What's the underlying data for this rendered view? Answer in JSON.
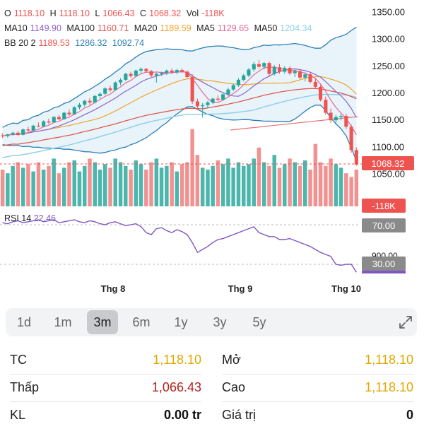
{
  "ohlc_legend": {
    "o_label": "O",
    "o_value": "1118.10",
    "h_label": "H",
    "h_value": "1118.10",
    "l_label": "L",
    "l_value": "1066.43",
    "c_label": "C",
    "c_value": "1068.32",
    "vol_label": "Vol",
    "vol_value": "-118K"
  },
  "ma_legend": {
    "ma10_label": "MA10",
    "ma10_value": "1149.90",
    "ma100_label": "MA100",
    "ma100_value": "1160.71",
    "ma20_label": "MA20",
    "ma20_value": "1189.59",
    "ma5_label": "MA5",
    "ma5_value": "1129.65",
    "ma50_label": "MA50",
    "ma50_value": "1204.34"
  },
  "bb_legend": {
    "label": "BB 20 2",
    "upper": "1189.53",
    "middle": "1286.32",
    "lower": "1092.74"
  },
  "rsi_legend": {
    "label": "RSI 14",
    "value": "22.46"
  },
  "price_axis": [
    "1350.00",
    "1300.00",
    "1250.00",
    "1200.00",
    "1150.00",
    "1100.00",
    "1050.00"
  ],
  "current_price_tag": "1068.32",
  "volume_tag": "-118K",
  "rsi_axis": {
    "upper": "70.00",
    "partial": "900.00",
    "lower": "30.00"
  },
  "time_axis": [
    "Thg 8",
    "Thg 9",
    "Thg 10"
  ],
  "timeframes": [
    "1d",
    "1m",
    "3m",
    "6m",
    "1y",
    "3y",
    "5y"
  ],
  "active_timeframe": "3m",
  "stats": {
    "tc_label": "TC",
    "tc_value": "1,118.10",
    "mo_label": "Mở",
    "mo_value": "1,118.10",
    "thap_label": "Thấp",
    "thap_value": "1,066.43",
    "cao_label": "Cao",
    "cao_value": "1,118.10",
    "kl_label": "KL",
    "kl_value": "0.00 tr",
    "gia_tri_label": "Giá trị",
    "gia_tri_value": "0"
  },
  "colors": {
    "up": "#26a69a",
    "down": "#ef5350",
    "ma10": "#8e63c9",
    "ma100": "#e05a4f",
    "ma20": "#f0a52c",
    "ma5": "#e8689a",
    "ma50": "#8fd1ec",
    "bb": "#2a7fb5",
    "gold": "#e0a800",
    "dark_red": "#b3201e",
    "rsi": "#7e57c2"
  },
  "chart_data": {
    "type": "candlestick",
    "y_range": [
      1030,
      1370
    ],
    "candles": [
      [
        1122,
        1126,
        1117,
        1121
      ],
      [
        1121,
        1125,
        1118,
        1124
      ],
      [
        1124,
        1129,
        1121,
        1127
      ],
      [
        1127,
        1130,
        1121,
        1123
      ],
      [
        1123,
        1135,
        1122,
        1133
      ],
      [
        1133,
        1138,
        1129,
        1131
      ],
      [
        1131,
        1142,
        1130,
        1140
      ],
      [
        1140,
        1146,
        1137,
        1139
      ],
      [
        1139,
        1150,
        1137,
        1148
      ],
      [
        1148,
        1153,
        1143,
        1146
      ],
      [
        1146,
        1158,
        1145,
        1156
      ],
      [
        1156,
        1160,
        1150,
        1152
      ],
      [
        1152,
        1166,
        1151,
        1164
      ],
      [
        1164,
        1170,
        1158,
        1161
      ],
      [
        1161,
        1176,
        1160,
        1174
      ],
      [
        1174,
        1182,
        1170,
        1179
      ],
      [
        1179,
        1188,
        1175,
        1186
      ],
      [
        1186,
        1191,
        1178,
        1183
      ],
      [
        1183,
        1197,
        1181,
        1195
      ],
      [
        1195,
        1202,
        1190,
        1199
      ],
      [
        1199,
        1211,
        1197,
        1209
      ],
      [
        1209,
        1214,
        1203,
        1206
      ],
      [
        1206,
        1222,
        1205,
        1220
      ],
      [
        1220,
        1228,
        1215,
        1225
      ],
      [
        1225,
        1238,
        1223,
        1236
      ],
      [
        1236,
        1240,
        1229,
        1232
      ],
      [
        1232,
        1244,
        1230,
        1242
      ],
      [
        1242,
        1248,
        1236,
        1245
      ],
      [
        1245,
        1247,
        1238,
        1241
      ],
      [
        1241,
        1243,
        1230,
        1233
      ],
      [
        1233,
        1238,
        1220,
        1236
      ],
      [
        1236,
        1240,
        1232,
        1238
      ],
      [
        1238,
        1244,
        1234,
        1242
      ],
      [
        1242,
        1246,
        1236,
        1239
      ],
      [
        1239,
        1245,
        1235,
        1243
      ],
      [
        1243,
        1246,
        1238,
        1240
      ],
      [
        1240,
        1242,
        1228,
        1230
      ],
      [
        1230,
        1235,
        1180,
        1185
      ],
      [
        1185,
        1190,
        1170,
        1176
      ],
      [
        1176,
        1182,
        1155,
        1178
      ],
      [
        1178,
        1186,
        1172,
        1183
      ],
      [
        1183,
        1192,
        1180,
        1190
      ],
      [
        1190,
        1196,
        1185,
        1188
      ],
      [
        1188,
        1200,
        1186,
        1198
      ],
      [
        1198,
        1210,
        1195,
        1207
      ],
      [
        1207,
        1218,
        1204,
        1215
      ],
      [
        1215,
        1228,
        1212,
        1225
      ],
      [
        1225,
        1236,
        1222,
        1233
      ],
      [
        1233,
        1247,
        1230,
        1244
      ],
      [
        1244,
        1258,
        1240,
        1254
      ],
      [
        1254,
        1262,
        1246,
        1249
      ],
      [
        1249,
        1258,
        1244,
        1256
      ],
      [
        1256,
        1259,
        1232,
        1236
      ],
      [
        1236,
        1252,
        1233,
        1248
      ],
      [
        1248,
        1254,
        1236,
        1240
      ],
      [
        1240,
        1250,
        1236,
        1247
      ],
      [
        1247,
        1250,
        1234,
        1237
      ],
      [
        1237,
        1244,
        1230,
        1241
      ],
      [
        1241,
        1244,
        1226,
        1229
      ],
      [
        1229,
        1238,
        1222,
        1235
      ],
      [
        1235,
        1238,
        1218,
        1221
      ],
      [
        1221,
        1228,
        1208,
        1212
      ],
      [
        1212,
        1216,
        1185,
        1188
      ],
      [
        1188,
        1194,
        1160,
        1164
      ],
      [
        1164,
        1172,
        1145,
        1150
      ],
      [
        1150,
        1160,
        1142,
        1156
      ],
      [
        1156,
        1162,
        1150,
        1158
      ],
      [
        1158,
        1162,
        1134,
        1138
      ],
      [
        1138,
        1142,
        1090,
        1095
      ],
      [
        1095,
        1100,
        1066,
        1068
      ]
    ],
    "volumes": [
      1.0,
      0.9,
      1.1,
      1.2,
      1.05,
      1.15,
      0.95,
      1.2,
      1.0,
      1.1,
      1.3,
      0.9,
      1.05,
      1.2,
      1.25,
      0.95,
      1.1,
      1.3,
      1.2,
      1.0,
      1.15,
      1.05,
      1.3,
      1.2,
      1.1,
      1.0,
      1.25,
      1.15,
      1.0,
      1.2,
      1.3,
      1.05,
      1.1,
      1.2,
      0.95,
      1.15,
      1.2,
      2.1,
      1.4,
      1.05,
      1.0,
      1.1,
      1.25,
      1.15,
      1.3,
      1.05,
      1.2,
      1.1,
      1.15,
      1.3,
      1.6,
      1.2,
      1.1,
      1.4,
      1.05,
      1.15,
      1.3,
      1.2,
      1.1,
      1.25,
      1.0,
      1.7,
      1.2,
      1.1,
      1.3,
      1.15,
      1.05,
      0.9,
      0.8,
      1.0
    ],
    "rsi": [
      72,
      71,
      73,
      74,
      72,
      73,
      74,
      75,
      73,
      74,
      75,
      72,
      73,
      74,
      75,
      73,
      72,
      74,
      73,
      71,
      70,
      72,
      73,
      71,
      69,
      70,
      71,
      68,
      62,
      60,
      66,
      67,
      64,
      62,
      65,
      63,
      60,
      52,
      42,
      45,
      48,
      52,
      55,
      56,
      58,
      60,
      62,
      64,
      66,
      68,
      62,
      60,
      58,
      58,
      55,
      55,
      56,
      54,
      52,
      50,
      48,
      45,
      42,
      40,
      38,
      30,
      29,
      30,
      30,
      22
    ]
  }
}
